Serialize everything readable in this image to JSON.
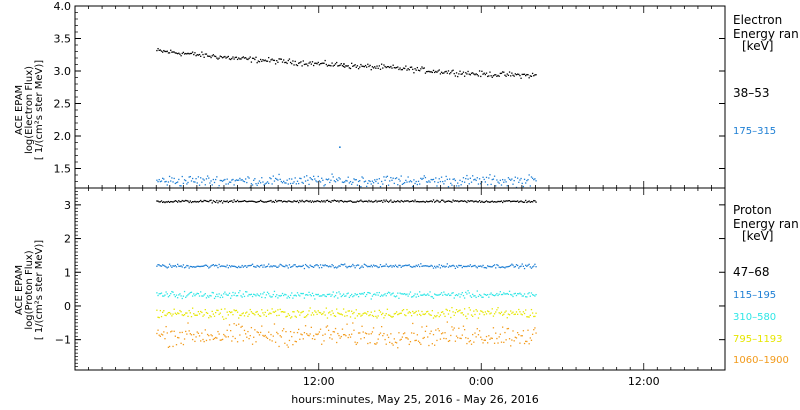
{
  "colors": {
    "black": "#000000",
    "blue": "#1e7fd4",
    "cyan": "#2ee6e6",
    "yellow": "#e6e600",
    "orange": "#f29a1a"
  },
  "chart_data": [
    {
      "type": "scatter",
      "panel": "electron",
      "ylabel": [
        "ACE EPAM",
        "log(Electron Flux)",
        "[ 1/(cm²s ster MeV)]"
      ],
      "legend_title": [
        "Electron",
        "Energy ran",
        "[keV]"
      ],
      "ylim": [
        1.2,
        4.0
      ],
      "yticks": [
        1.5,
        2.0,
        2.5,
        3.0,
        3.5,
        4.0
      ],
      "ytick_labels": [
        "1.5",
        "2.0",
        "2.5",
        "3.0",
        "3.5",
        "4.0"
      ],
      "series": [
        {
          "name": "38–53",
          "color": "#000000",
          "x": [
            0,
            3,
            6,
            9,
            12,
            15,
            18,
            21,
            24,
            26,
            28
          ],
          "y": [
            3.32,
            3.26,
            3.2,
            3.16,
            3.12,
            3.08,
            3.05,
            3.0,
            2.96,
            2.95,
            2.94
          ],
          "noise": 0.03
        },
        {
          "name": "175–315",
          "color": "#1e7fd4",
          "x": [
            0,
            14,
            28
          ],
          "y": [
            1.32,
            1.32,
            1.32
          ],
          "noise": 0.06
        }
      ],
      "outliers": [
        {
          "x": 13.5,
          "y": 1.84,
          "color": "#1e7fd4"
        },
        {
          "x": 13.8,
          "y": 3.12,
          "color": "#000000"
        }
      ]
    },
    {
      "type": "scatter",
      "panel": "proton",
      "ylabel": [
        "ACE EPAM",
        "log(Proton Flux)",
        "[ 1/(cm²s ster MeV)]"
      ],
      "legend_title": [
        "Proton",
        "Energy ran",
        "[keV]"
      ],
      "ylim": [
        -1.9,
        3.5
      ],
      "yticks": [
        -1,
        0,
        1,
        2,
        3
      ],
      "ytick_labels": [
        "−1",
        "0",
        "1",
        "2",
        "3"
      ],
      "series": [
        {
          "name": "47–68",
          "color": "#000000",
          "x": [
            0,
            28
          ],
          "y": [
            3.12,
            3.12
          ],
          "noise": 0.025
        },
        {
          "name": "115–195",
          "color": "#1e7fd4",
          "x": [
            0,
            28
          ],
          "y": [
            1.2,
            1.2
          ],
          "noise": 0.04
        },
        {
          "name": "310–580",
          "color": "#2ee6e6",
          "x": [
            0,
            28
          ],
          "y": [
            0.35,
            0.35
          ],
          "noise": 0.07
        },
        {
          "name": "795–1193",
          "color": "#e6e600",
          "x": [
            0,
            28
          ],
          "y": [
            -0.2,
            -0.2
          ],
          "noise": 0.1
        },
        {
          "name": "1060–1900",
          "color": "#f29a1a",
          "x": [
            0,
            28
          ],
          "y": [
            -0.85,
            -0.85
          ],
          "noise": 0.22
        }
      ]
    }
  ],
  "x_axis": {
    "label": "hours:minutes, May 25, 2016 - May 26, 2016",
    "range_hours": [
      -6,
      42
    ],
    "ticks": [
      {
        "h": 12,
        "label": "12:00"
      },
      {
        "h": 24,
        "label": "0:00"
      },
      {
        "h": 36,
        "label": "12:00"
      }
    ],
    "minor_tick_every_hours": 1
  }
}
